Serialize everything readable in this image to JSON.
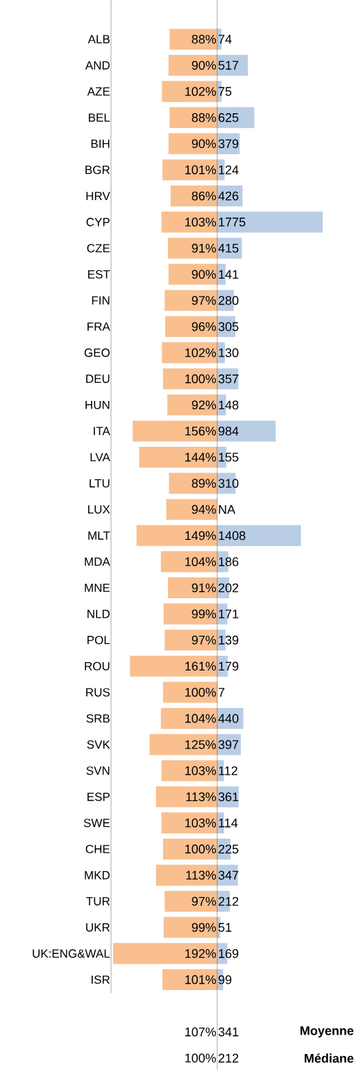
{
  "chart_data": [
    {
      "type": "bar",
      "orientation": "horizontal",
      "color": "#f9bf8f",
      "categories": [
        "ALB",
        "AND",
        "AZE",
        "BEL",
        "BIH",
        "BGR",
        "HRV",
        "CYP",
        "CZE",
        "EST",
        "FIN",
        "FRA",
        "GEO",
        "DEU",
        "HUN",
        "ITA",
        "LVA",
        "LTU",
        "LUX",
        "MLT",
        "MDA",
        "MNE",
        "NLD",
        "POL",
        "ROU",
        "RUS",
        "SRB",
        "SVK",
        "SVN",
        "ESP",
        "SWE",
        "CHE",
        "MKD",
        "TUR",
        "UKR",
        "UK:ENG&WAL",
        "ISR"
      ],
      "values": [
        88,
        90,
        102,
        88,
        90,
        101,
        86,
        103,
        91,
        90,
        97,
        96,
        102,
        100,
        92,
        156,
        144,
        89,
        94,
        149,
        104,
        91,
        99,
        97,
        161,
        100,
        104,
        125,
        103,
        113,
        103,
        100,
        113,
        97,
        99,
        192,
        101
      ],
      "value_labels": [
        "88%",
        "90%",
        "102%",
        "88%",
        "90%",
        "101%",
        "86%",
        "103%",
        "91%",
        "90%",
        "97%",
        "96%",
        "102%",
        "100%",
        "92%",
        "156%",
        "144%",
        "89%",
        "94%",
        "149%",
        "104%",
        "91%",
        "99%",
        "97%",
        "161%",
        "100%",
        "104%",
        "125%",
        "103%",
        "113%",
        "103%",
        "100%",
        "113%",
        "97%",
        "99%",
        "192%",
        "101%"
      ],
      "xlim": [
        196,
        0
      ],
      "tick_labels": "y",
      "annotations": [
        "107%",
        "100%"
      ]
    },
    {
      "type": "bar",
      "orientation": "horizontal",
      "color": "#b9cde5",
      "values": [
        74,
        517,
        75,
        625,
        379,
        124,
        426,
        1775,
        415,
        141,
        280,
        305,
        130,
        357,
        148,
        984,
        155,
        310,
        null,
        1408,
        186,
        202,
        171,
        139,
        179,
        7,
        440,
        397,
        112,
        361,
        114,
        225,
        347,
        212,
        51,
        169,
        99
      ],
      "value_labels": [
        "74",
        "517",
        "75",
        "625",
        "379",
        "124",
        "426",
        "1775",
        "415",
        "141",
        "280",
        "305",
        "130",
        "357",
        "148",
        "984",
        "155",
        "310",
        "NA",
        "1408",
        "186",
        "202",
        "171",
        "139",
        "179",
        "7",
        "440",
        "397",
        "112",
        "361",
        "114",
        "225",
        "347",
        "212",
        "51",
        "169",
        "99"
      ],
      "tick_labels": false,
      "annotations": [
        "341",
        "212",
        "Moyenne",
        "Médiane"
      ]
    }
  ]
}
